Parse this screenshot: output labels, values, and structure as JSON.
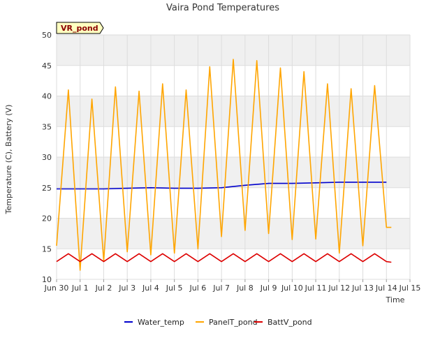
{
  "chart_data": {
    "type": "line",
    "title": "Vaira Pond Temperatures",
    "xlabel": "Time",
    "ylabel": "Temperature (C), Battery (V)",
    "badge": "VR_pond",
    "x_ticks": [
      "Jun 30",
      "Jul 1",
      "Jul 2",
      "Jul 3",
      "Jul 4",
      "Jul 5",
      "Jul 6",
      "Jul 7",
      "Jul 8",
      "Jul 9",
      "Jul 10",
      "Jul 11",
      "Jul 12",
      "Jul 13",
      "Jul 14",
      "Jul 15"
    ],
    "xlim": [
      "Jun 30",
      "Jul 15"
    ],
    "y_ticks": [
      10,
      15,
      20,
      25,
      30,
      35,
      40,
      45,
      50
    ],
    "ylim": [
      10,
      50
    ],
    "grid": true,
    "legend_position": "bottom",
    "series": [
      {
        "name": "Water_temp",
        "color": "#0000cc",
        "x": [
          "Jun 30",
          "Jul 1",
          "Jul 2",
          "Jul 3",
          "Jul 4",
          "Jul 5",
          "Jul 6",
          "Jul 7",
          "Jul 8",
          "Jul 9",
          "Jul 10",
          "Jul 11",
          "Jul 12",
          "Jul 13",
          "Jul 14"
        ],
        "values": [
          24.8,
          24.8,
          24.8,
          24.9,
          25.0,
          24.9,
          24.9,
          25.0,
          25.4,
          25.7,
          25.7,
          25.8,
          25.9,
          25.9,
          25.9
        ]
      },
      {
        "name": "PanelT_pond",
        "color": "#ffa500",
        "x": [
          "Jun 30",
          "Jun 30 12:00",
          "Jul 1",
          "Jul 1 12:00",
          "Jul 2",
          "Jul 2 12:00",
          "Jul 3",
          "Jul 3 12:00",
          "Jul 4",
          "Jul 4 12:00",
          "Jul 5",
          "Jul 5 12:00",
          "Jul 6",
          "Jul 6 12:00",
          "Jul 7",
          "Jul 7 12:00",
          "Jul 8",
          "Jul 8 12:00",
          "Jul 9",
          "Jul 9 12:00",
          "Jul 10",
          "Jul 10 12:00",
          "Jul 11",
          "Jul 11 12:00",
          "Jul 12",
          "Jul 12 12:00",
          "Jul 13",
          "Jul 13 12:00",
          "Jul 14",
          "Jul 14 05:00"
        ],
        "values": [
          15.5,
          41.0,
          11.5,
          39.5,
          13.0,
          41.5,
          14.5,
          40.8,
          14.0,
          42.0,
          14.3,
          41.0,
          15.0,
          44.8,
          17.0,
          46.0,
          18.0,
          45.8,
          17.5,
          44.6,
          16.5,
          44.0,
          16.6,
          42.0,
          14.3,
          41.2,
          15.5,
          41.7,
          18.5,
          18.5
        ]
      },
      {
        "name": "BattV_pond",
        "color": "#dd0000",
        "x": [
          "Jun 30",
          "Jun 30 12:00",
          "Jul 1",
          "Jul 1 12:00",
          "Jul 2",
          "Jul 2 12:00",
          "Jul 3",
          "Jul 3 12:00",
          "Jul 4",
          "Jul 4 12:00",
          "Jul 5",
          "Jul 5 12:00",
          "Jul 6",
          "Jul 6 12:00",
          "Jul 7",
          "Jul 7 12:00",
          "Jul 8",
          "Jul 8 12:00",
          "Jul 9",
          "Jul 9 12:00",
          "Jul 10",
          "Jul 10 12:00",
          "Jul 11",
          "Jul 11 12:00",
          "Jul 12",
          "Jul 12 12:00",
          "Jul 13",
          "Jul 13 12:00",
          "Jul 14",
          "Jul 14 05:00"
        ],
        "values": [
          12.9,
          14.2,
          12.9,
          14.2,
          12.9,
          14.2,
          12.9,
          14.2,
          12.9,
          14.2,
          12.9,
          14.2,
          12.9,
          14.2,
          12.9,
          14.2,
          12.9,
          14.2,
          12.9,
          14.2,
          12.9,
          14.2,
          12.9,
          14.2,
          12.9,
          14.2,
          12.9,
          14.2,
          12.9,
          12.8
        ]
      }
    ]
  }
}
